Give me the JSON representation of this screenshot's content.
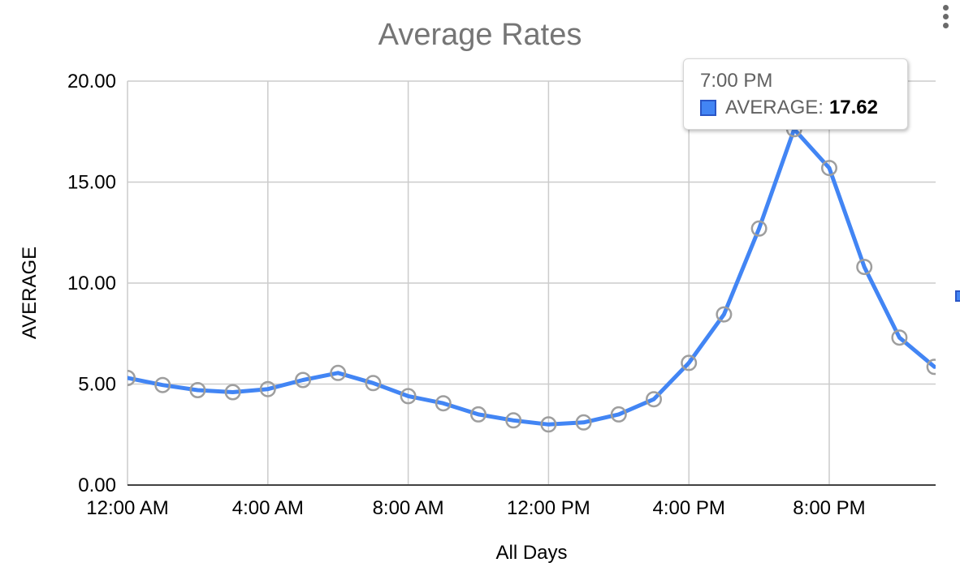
{
  "header": {
    "title": "Average Rates"
  },
  "tooltip": {
    "time": "7:00 PM",
    "series_label": "AVERAGE:",
    "value": "17.62"
  },
  "colors": {
    "series_blue": "#4285f4",
    "swatch_border": "#2a56c6",
    "marker_gray": "#9e9e9e",
    "gridline": "#cccccc",
    "baseline": "#424242",
    "title_gray": "#757575"
  },
  "chart_data": {
    "type": "line",
    "title": "Average Rates",
    "xlabel": "All Days",
    "ylabel": "AVERAGE",
    "ylim": [
      0,
      20
    ],
    "grid": true,
    "marker": "open-circle",
    "legend_position": "right (cut off at image edge)",
    "categories": [
      "12:00 AM",
      "1:00 AM",
      "2:00 AM",
      "3:00 AM",
      "4:00 AM",
      "5:00 AM",
      "6:00 AM",
      "7:00 AM",
      "8:00 AM",
      "9:00 AM",
      "10:00 AM",
      "11:00 AM",
      "12:00 PM",
      "1:00 PM",
      "2:00 PM",
      "3:00 PM",
      "4:00 PM",
      "5:00 PM",
      "6:00 PM",
      "7:00 PM",
      "8:00 PM",
      "9:00 PM",
      "10:00 PM",
      "11:00 PM"
    ],
    "series": [
      {
        "name": "AVERAGE",
        "color": "#4285f4",
        "values": [
          5.3,
          4.95,
          4.7,
          4.6,
          4.75,
          5.2,
          5.55,
          5.05,
          4.4,
          4.05,
          3.5,
          3.2,
          3.0,
          3.1,
          3.5,
          4.25,
          6.05,
          8.45,
          12.7,
          17.62,
          15.7,
          10.8,
          7.3,
          5.85
        ]
      }
    ],
    "y_ticks": {
      "values": [
        0,
        5,
        10,
        15,
        20
      ],
      "labels": [
        "0.00",
        "5.00",
        "10.00",
        "15.00",
        "20.00"
      ]
    },
    "x_ticks": {
      "indices": [
        0,
        4,
        8,
        12,
        16,
        20
      ],
      "labels": [
        "12:00 AM",
        "4:00 AM",
        "8:00 AM",
        "12:00 PM",
        "4:00 PM",
        "8:00 PM"
      ]
    },
    "highlighted_point": {
      "category": "7:00 PM",
      "series": "AVERAGE",
      "value": 17.62
    }
  }
}
